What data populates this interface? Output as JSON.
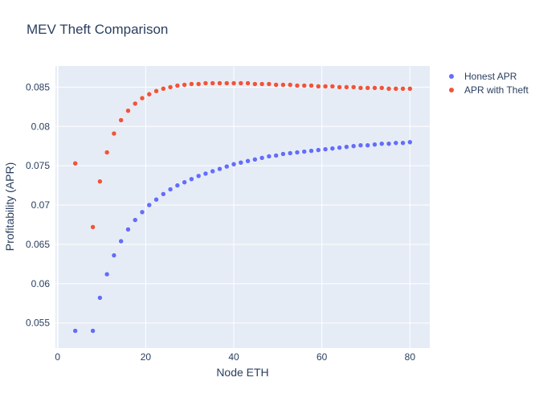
{
  "chart_data": {
    "type": "scatter",
    "title": "MEV Theft Comparison",
    "xlabel": "Node ETH",
    "ylabel": "Profitability (APR)",
    "xlim": [
      -0.5,
      84.5
    ],
    "ylim": [
      0.0518,
      0.0877
    ],
    "xticks": [
      0,
      20,
      40,
      60,
      80
    ],
    "yticks": [
      0.055,
      0.06,
      0.065,
      0.07,
      0.075,
      0.08,
      0.085
    ],
    "ytick_labels": [
      "0.055",
      "0.06",
      "0.065",
      "0.07",
      "0.075",
      "0.08",
      "0.085"
    ],
    "grid": true,
    "legend_position": "top-right",
    "series": [
      {
        "name": "Honest APR",
        "color": "#636efa",
        "x": [
          4,
          8,
          9.6,
          11.2,
          12.8,
          14.4,
          16,
          17.6,
          19.2,
          20.8,
          22.4,
          24,
          25.6,
          27.2,
          28.8,
          30.4,
          32,
          33.6,
          35.2,
          36.8,
          38.4,
          40,
          41.6,
          43.2,
          44.8,
          46.4,
          48,
          49.6,
          51.2,
          52.8,
          54.4,
          56,
          57.6,
          59.2,
          60.8,
          62.4,
          64,
          65.6,
          67.2,
          68.8,
          70.4,
          72,
          73.6,
          75.2,
          76.8,
          78.4,
          80
        ],
        "y": [
          0.054,
          0.054,
          0.0582,
          0.0612,
          0.0636,
          0.0654,
          0.0669,
          0.0681,
          0.0691,
          0.07,
          0.0707,
          0.0714,
          0.072,
          0.0725,
          0.0729,
          0.0733,
          0.0737,
          0.074,
          0.0743,
          0.0746,
          0.0749,
          0.0752,
          0.0754,
          0.0756,
          0.0758,
          0.076,
          0.0762,
          0.0763,
          0.0765,
          0.0766,
          0.0767,
          0.0768,
          0.0769,
          0.077,
          0.0771,
          0.0772,
          0.0773,
          0.0774,
          0.0775,
          0.0776,
          0.0776,
          0.0777,
          0.0778,
          0.0778,
          0.0779,
          0.0779,
          0.078
        ]
      },
      {
        "name": "APR with Theft",
        "color": "#ef553b",
        "x": [
          4,
          8,
          9.6,
          11.2,
          12.8,
          14.4,
          16,
          17.6,
          19.2,
          20.8,
          22.4,
          24,
          25.6,
          27.2,
          28.8,
          30.4,
          32,
          33.6,
          35.2,
          36.8,
          38.4,
          40,
          41.6,
          43.2,
          44.8,
          46.4,
          48,
          49.6,
          51.2,
          52.8,
          54.4,
          56,
          57.6,
          59.2,
          60.8,
          62.4,
          64,
          65.6,
          67.2,
          68.8,
          70.4,
          72,
          73.6,
          75.2,
          76.8,
          78.4,
          80
        ],
        "y": [
          0.0753,
          0.0672,
          0.073,
          0.0767,
          0.0791,
          0.0808,
          0.082,
          0.0829,
          0.0836,
          0.0841,
          0.0845,
          0.0848,
          0.085,
          0.0852,
          0.0853,
          0.0854,
          0.0854,
          0.0855,
          0.0855,
          0.0855,
          0.0855,
          0.0855,
          0.0855,
          0.0855,
          0.0854,
          0.0854,
          0.0854,
          0.0853,
          0.0853,
          0.0853,
          0.0852,
          0.0852,
          0.0852,
          0.0851,
          0.0851,
          0.0851,
          0.085,
          0.085,
          0.085,
          0.0849,
          0.0849,
          0.0849,
          0.0849,
          0.0848,
          0.0848,
          0.0848,
          0.0848
        ]
      }
    ]
  }
}
